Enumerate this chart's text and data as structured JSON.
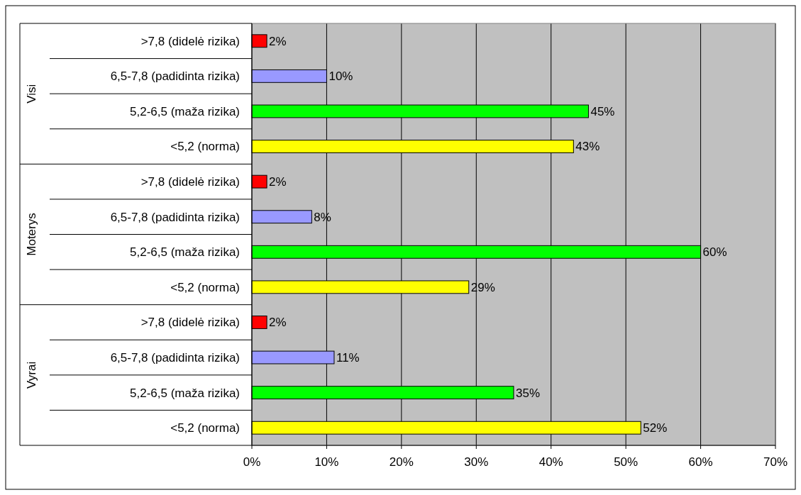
{
  "chart_data": {
    "type": "bar",
    "orientation": "horizontal",
    "categories": [
      ">7,8 (didelė rizika)",
      "6,5-7,8 (padidinta rizika)",
      "5,2-6,5 (maža rizika)",
      "<5,2 (norma)",
      ">7,8 (didelė rizika)",
      "6,5-7,8 (padidinta rizika)",
      "5,2-6,5 (maža rizika)",
      "<5,2 (norma)",
      ">7,8 (didelė rizika)",
      "6,5-7,8 (padidinta rizika)",
      "5,2-6,5 (maža rizika)",
      "<5,2 (norma)"
    ],
    "values": [
      2,
      10,
      45,
      43,
      2,
      8,
      60,
      29,
      2,
      11,
      35,
      52
    ],
    "value_labels": [
      "2%",
      "10%",
      "45%",
      "43%",
      "2%",
      "8%",
      "60%",
      "29%",
      "2%",
      "11%",
      "35%",
      "52%"
    ],
    "colors": [
      "#ff0000",
      "#9999ff",
      "#00ff00",
      "#ffff00",
      "#ff0000",
      "#9999ff",
      "#00ff00",
      "#ffff00",
      "#ff0000",
      "#9999ff",
      "#00ff00",
      "#ffff00"
    ],
    "annotations": [
      "Visi",
      "Moterys",
      "Vyrai"
    ],
    "xlim": [
      0,
      70
    ],
    "xticks": [
      {
        "value": 0,
        "label": "0%"
      },
      {
        "value": 10,
        "label": "10%"
      },
      {
        "value": 20,
        "label": "20%"
      },
      {
        "value": 30,
        "label": "30%"
      },
      {
        "value": 40,
        "label": "40%"
      },
      {
        "value": 50,
        "label": "50%"
      },
      {
        "value": 60,
        "label": "60%"
      },
      {
        "value": 70,
        "label": "70%"
      }
    ],
    "grid": "x"
  }
}
